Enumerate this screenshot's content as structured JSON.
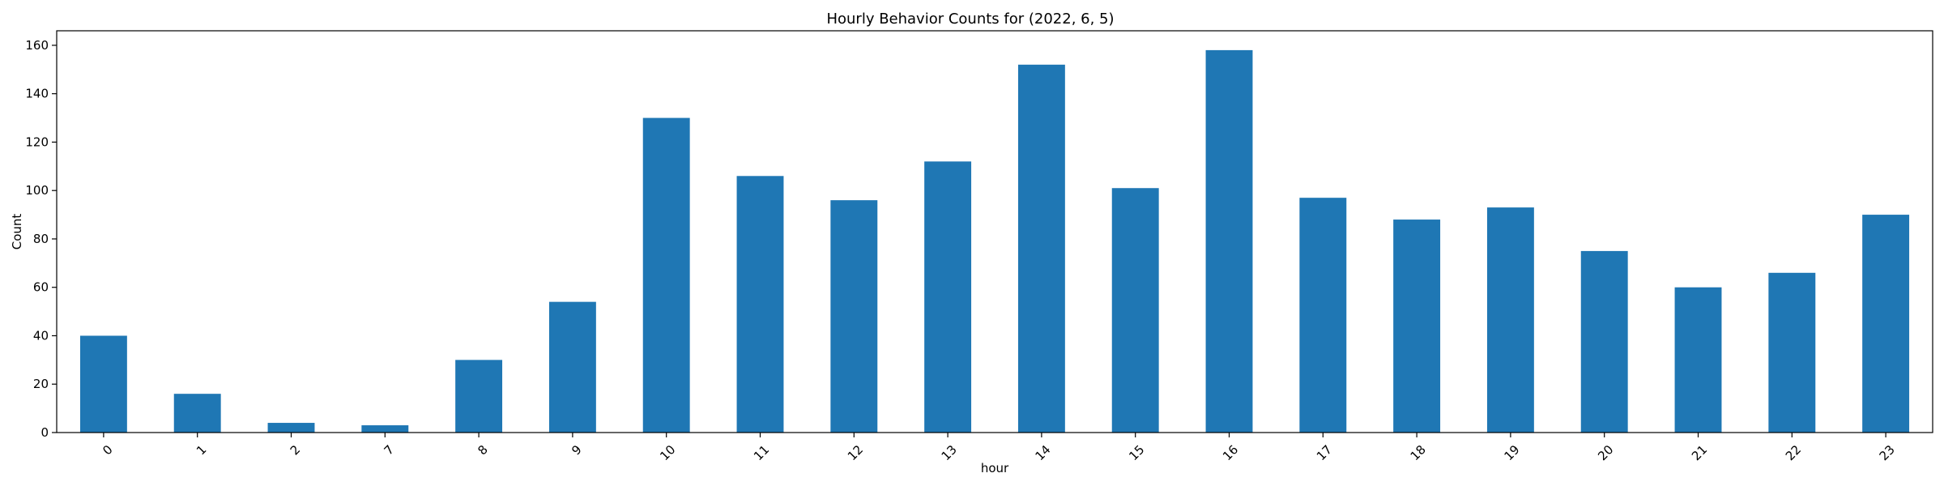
{
  "chart_data": {
    "type": "bar",
    "title": "Hourly Behavior Counts for (2022, 6, 5)",
    "xlabel": "hour",
    "ylabel": "Count",
    "categories": [
      "0",
      "1",
      "2",
      "7",
      "8",
      "9",
      "10",
      "11",
      "12",
      "13",
      "14",
      "15",
      "16",
      "17",
      "18",
      "19",
      "20",
      "21",
      "22",
      "23"
    ],
    "values": [
      40,
      16,
      4,
      3,
      30,
      54,
      130,
      106,
      96,
      112,
      152,
      101,
      158,
      97,
      88,
      93,
      75,
      60,
      66,
      90
    ],
    "ylim": [
      0,
      166
    ],
    "yticks": [
      0,
      20,
      40,
      60,
      80,
      100,
      120,
      140,
      160
    ],
    "bar_color": "#1f77b4",
    "grid": false,
    "legend": "none",
    "x_tick_rotation": "45"
  }
}
